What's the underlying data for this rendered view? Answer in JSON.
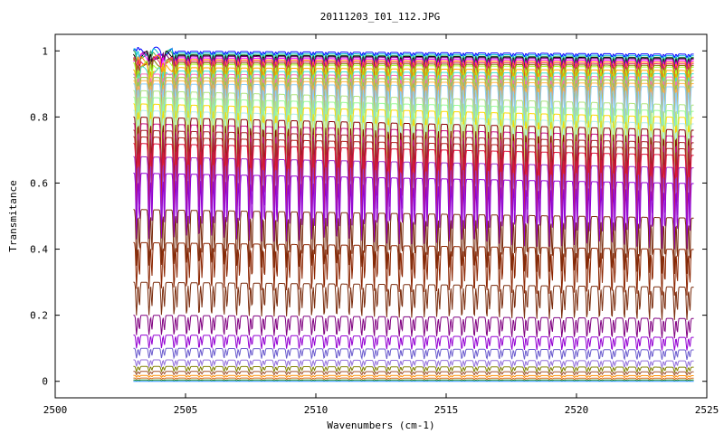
{
  "chart_data": {
    "type": "line",
    "title": "20111203_I01_112.JPG",
    "xlabel": "Wavenumbers (cm-1)",
    "ylabel": "Transmitance",
    "xlim": [
      2500,
      2525
    ],
    "ylim": [
      -0.05,
      1.05
    ],
    "x_ticks": [
      "2500",
      "2505",
      "2510",
      "2515",
      "2520",
      "2525"
    ],
    "y_ticks": [
      "0",
      "0.2",
      "0.4",
      "0.6",
      "0.8",
      "1"
    ],
    "x_range": [
      2503.0,
      2524.5
    ],
    "line_spacing_cm1": 0.48,
    "grid": false,
    "legend": "none",
    "series": [
      {
        "level": 1.0,
        "dip": 0.01,
        "color": "#0000ff"
      },
      {
        "level": 0.995,
        "dip": 0.02,
        "color": "#00bcd4"
      },
      {
        "level": 0.99,
        "dip": 0.02,
        "color": "#4caf50"
      },
      {
        "level": 0.988,
        "dip": 0.03,
        "color": "#000000"
      },
      {
        "level": 0.985,
        "dip": 0.03,
        "color": "#800080"
      },
      {
        "level": 0.98,
        "dip": 0.04,
        "color": "#ff00ff"
      },
      {
        "level": 0.975,
        "dip": 0.04,
        "color": "#ff8c00"
      },
      {
        "level": 0.97,
        "dip": 0.05,
        "color": "#e91e63"
      },
      {
        "level": 0.965,
        "dip": 0.05,
        "color": "#808000"
      },
      {
        "level": 0.96,
        "dip": 0.06,
        "color": "#adff2f"
      },
      {
        "level": 0.95,
        "dip": 0.07,
        "color": "#ffa500"
      },
      {
        "level": 0.94,
        "dip": 0.08,
        "color": "#40e0d0"
      },
      {
        "level": 0.93,
        "dip": 0.09,
        "color": "#ff69b4"
      },
      {
        "level": 0.92,
        "dip": 0.1,
        "color": "#9acd32"
      },
      {
        "level": 0.91,
        "dip": 0.11,
        "color": "#ffb347"
      },
      {
        "level": 0.9,
        "dip": 0.12,
        "color": "#87cefa"
      },
      {
        "level": 0.88,
        "dip": 0.14,
        "color": "#b0e57c"
      },
      {
        "level": 0.86,
        "dip": 0.16,
        "color": "#98fb98"
      },
      {
        "level": 0.84,
        "dip": 0.17,
        "color": "#ffd700"
      },
      {
        "level": 0.82,
        "dip": 0.18,
        "color": "#afeeee"
      },
      {
        "level": 0.8,
        "dip": 0.19,
        "color": "#8b0000"
      },
      {
        "level": 0.78,
        "dip": 0.2,
        "color": "#c71585"
      },
      {
        "level": 0.76,
        "dip": 0.2,
        "color": "#a52a2a"
      },
      {
        "level": 0.74,
        "dip": 0.21,
        "color": "#b22222"
      },
      {
        "level": 0.72,
        "dip": 0.21,
        "color": "#dc143c"
      },
      {
        "level": 0.68,
        "dip": 0.21,
        "color": "#9932cc"
      },
      {
        "level": 0.63,
        "dip": 0.2,
        "color": "#9400d3"
      },
      {
        "level": 0.52,
        "dip": 0.17,
        "color": "#7b2d0e"
      },
      {
        "level": 0.42,
        "dip": 0.14,
        "color": "#8b2500"
      },
      {
        "level": 0.3,
        "dip": 0.1,
        "color": "#7b2d0e"
      },
      {
        "level": 0.2,
        "dip": 0.06,
        "color": "#800080"
      },
      {
        "level": 0.14,
        "dip": 0.04,
        "color": "#9400d3"
      },
      {
        "level": 0.1,
        "dip": 0.03,
        "color": "#6a5acd"
      },
      {
        "level": 0.065,
        "dip": 0.02,
        "color": "#9370db"
      },
      {
        "level": 0.045,
        "dip": 0.015,
        "color": "#808000"
      },
      {
        "level": 0.03,
        "dip": 0.01,
        "color": "#a0522d"
      },
      {
        "level": 0.018,
        "dip": 0.006,
        "color": "#ff8c00"
      },
      {
        "level": 0.01,
        "dip": 0.004,
        "color": "#d2691e"
      },
      {
        "level": 0.004,
        "dip": 0.002,
        "color": "#228b22"
      },
      {
        "level": 0.0,
        "dip": 0.0,
        "color": "#1e90ff"
      }
    ]
  }
}
